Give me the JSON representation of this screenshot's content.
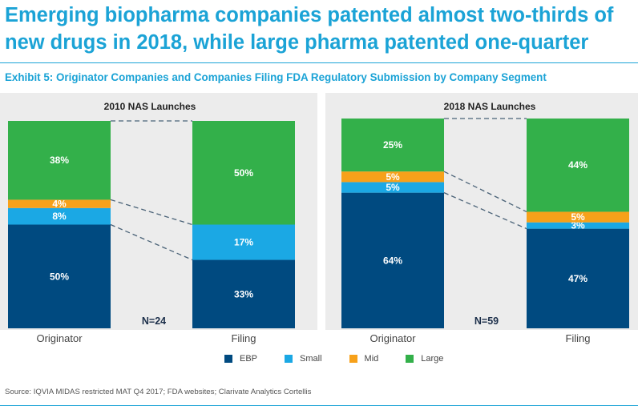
{
  "headline": "Emerging biopharma companies patented almost two-thirds of new drugs in 2018, while large pharma patented one-quarter",
  "exhibit_title": "Exhibit 5: Originator Companies and Companies Filing FDA Regulatory Submission by Company Segment",
  "source": "Source: IQVIA MIDAS restricted MAT Q4 2017; FDA websites; Clarivate Analytics Cortellis",
  "colors": {
    "EBP": "#004a80",
    "Small": "#1ba8e4",
    "Mid": "#f7a11a",
    "Large": "#33b04a",
    "accent": "#1ba3d6",
    "panel": "#ececec"
  },
  "chart_data": [
    {
      "type": "bar",
      "stacked": true,
      "normalized": true,
      "title": "2010 NAS Launches",
      "annotation": "N=24",
      "categories": [
        "Originator",
        "Filing"
      ],
      "series": [
        {
          "name": "EBP",
          "values": [
            50,
            33
          ],
          "labels": [
            "50%",
            "33%"
          ]
        },
        {
          "name": "Small",
          "values": [
            8,
            17
          ],
          "labels": [
            "8%",
            "17%"
          ]
        },
        {
          "name": "Mid",
          "values": [
            4,
            0
          ],
          "labels": [
            "4%",
            ""
          ]
        },
        {
          "name": "Large",
          "values": [
            38,
            50
          ],
          "labels": [
            "38%",
            "50%"
          ]
        }
      ],
      "ylim": [
        0,
        100
      ],
      "grid": false,
      "legend": "bottom-center"
    },
    {
      "type": "bar",
      "stacked": true,
      "normalized": true,
      "title": "2018 NAS Launches",
      "annotation": "N=59",
      "categories": [
        "Originator",
        "Filing"
      ],
      "series": [
        {
          "name": "EBP",
          "values": [
            64,
            47
          ],
          "labels": [
            "64%",
            "47%"
          ]
        },
        {
          "name": "Small",
          "values": [
            5,
            3
          ],
          "labels": [
            "5%",
            "3%"
          ]
        },
        {
          "name": "Mid",
          "values": [
            5,
            5
          ],
          "labels": [
            "5%",
            "5%"
          ]
        },
        {
          "name": "Large",
          "values": [
            25,
            44
          ],
          "labels": [
            "25%",
            "44%"
          ]
        }
      ],
      "ylim": [
        0,
        100
      ],
      "grid": false,
      "legend": "bottom-center"
    }
  ],
  "legend": [
    {
      "name": "EBP",
      "color": "#004a80"
    },
    {
      "name": "Small",
      "color": "#1ba8e4"
    },
    {
      "name": "Mid",
      "color": "#f7a11a"
    },
    {
      "name": "Large",
      "color": "#33b04a"
    }
  ]
}
